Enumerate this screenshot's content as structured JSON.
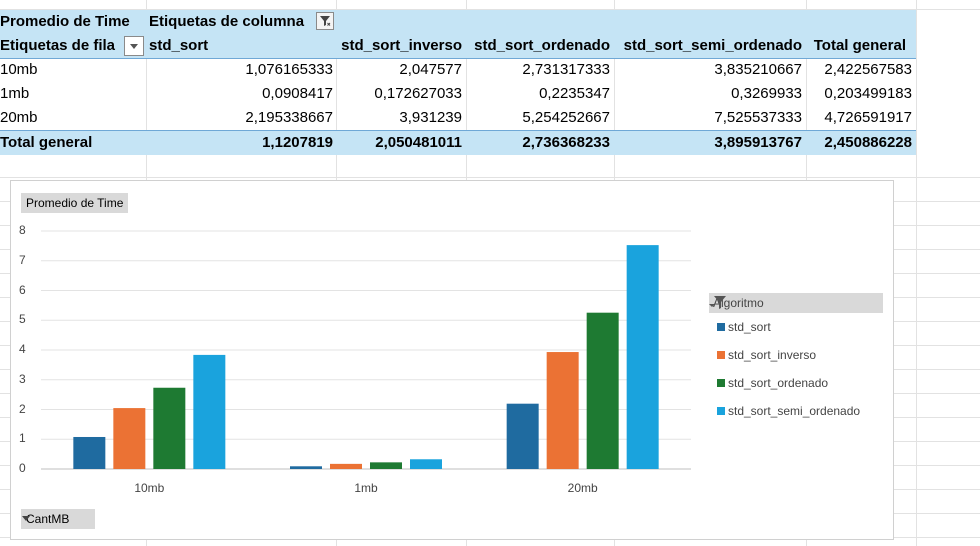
{
  "pivot": {
    "corner_value_label": "Promedio de Time",
    "column_labels_header": "Etiquetas de columna",
    "row_labels_header": "Etiquetas de fila",
    "columns": [
      "std_sort",
      "std_sort_inverso",
      "std_sort_ordenado",
      "std_sort_semi_ordenado",
      "Total general"
    ],
    "rows": [
      {
        "label": "10mb",
        "values": [
          "1,076165333",
          "2,047577",
          "2,731317333",
          "3,835210667",
          "2,422567583"
        ]
      },
      {
        "label": "1mb",
        "values": [
          "0,0908417",
          "0,172627033",
          "0,2235347",
          "0,3269933",
          "0,203499183"
        ]
      },
      {
        "label": "20mb",
        "values": [
          "2,195338667",
          "3,931239",
          "5,254252667",
          "7,525537333",
          "4,726591917"
        ]
      }
    ],
    "total": {
      "label": "Total general",
      "values": [
        "1,1207819",
        "2,050481011",
        "2,736368233",
        "3,895913767",
        "2,450886228"
      ]
    }
  },
  "chart": {
    "value_field_button": "Promedio de Time",
    "axis_field_button": "CantMB",
    "legend_title": "Algoritmo",
    "colors": [
      "#1f6ba0",
      "#eb7234",
      "#1e7a32",
      "#1aa3dd"
    ]
  },
  "chart_data": {
    "type": "bar",
    "categories": [
      "10mb",
      "1mb",
      "20mb"
    ],
    "series": [
      {
        "name": "std_sort",
        "values": [
          1.076165333,
          0.0908417,
          2.195338667
        ]
      },
      {
        "name": "std_sort_inverso",
        "values": [
          2.047577,
          0.172627033,
          3.931239
        ]
      },
      {
        "name": "std_sort_ordenado",
        "values": [
          2.731317333,
          0.2235347,
          5.254252667
        ]
      },
      {
        "name": "std_sort_semi_ordenado",
        "values": [
          3.835210667,
          0.3269933,
          7.525537333
        ]
      }
    ],
    "yticks": [
      "0",
      "1",
      "2",
      "3",
      "4",
      "5",
      "6",
      "7",
      "8"
    ],
    "ylim": [
      0,
      8
    ],
    "grid": true,
    "legend_position": "right"
  }
}
